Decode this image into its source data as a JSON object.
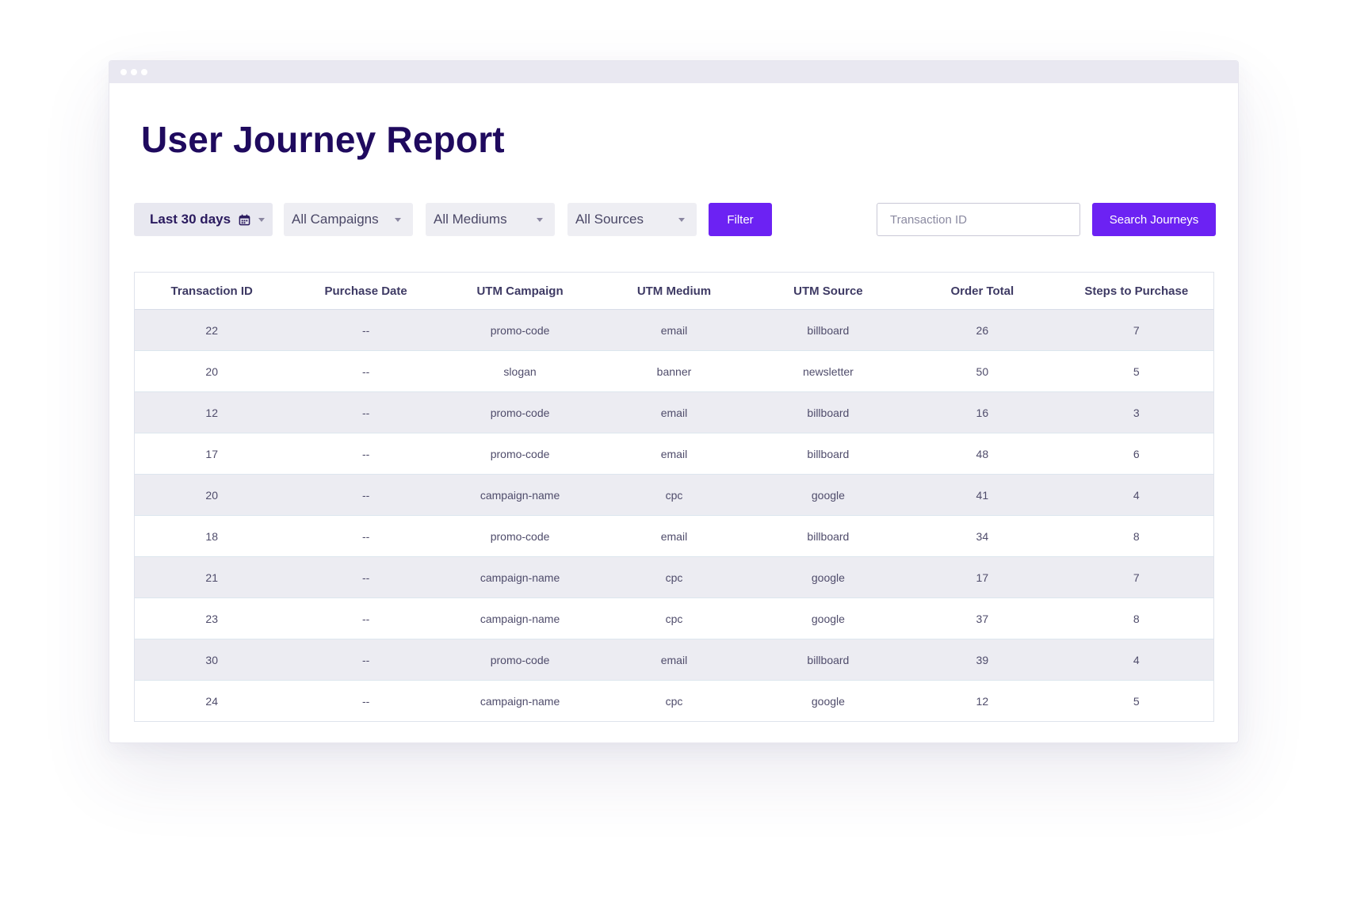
{
  "header": {
    "title": "User Journey Report"
  },
  "filters": {
    "date_range": "Last 30 days",
    "campaigns": "All Campaigns",
    "mediums": "All Mediums",
    "sources": "All Sources",
    "filter_label": "Filter"
  },
  "search": {
    "placeholder": "Transaction ID",
    "button_label": "Search Journeys"
  },
  "table": {
    "columns": [
      "Transaction ID",
      "Purchase Date",
      "UTM Campaign",
      "UTM Medium",
      "UTM Source",
      "Order Total",
      "Steps to Purchase"
    ],
    "rows": [
      [
        "22",
        "--",
        "promo-code",
        "email",
        "billboard",
        "26",
        "7"
      ],
      [
        "20",
        "--",
        "slogan",
        "banner",
        "newsletter",
        "50",
        "5"
      ],
      [
        "12",
        "--",
        "promo-code",
        "email",
        "billboard",
        "16",
        "3"
      ],
      [
        "17",
        "--",
        "promo-code",
        "email",
        "billboard",
        "48",
        "6"
      ],
      [
        "20",
        "--",
        "campaign-name",
        "cpc",
        "google",
        "41",
        "4"
      ],
      [
        "18",
        "--",
        "promo-code",
        "email",
        "billboard",
        "34",
        "8"
      ],
      [
        "21",
        "--",
        "campaign-name",
        "cpc",
        "google",
        "17",
        "7"
      ],
      [
        "23",
        "--",
        "campaign-name",
        "cpc",
        "google",
        "37",
        "8"
      ],
      [
        "30",
        "--",
        "promo-code",
        "email",
        "billboard",
        "39",
        "4"
      ],
      [
        "24",
        "--",
        "campaign-name",
        "cpc",
        "google",
        "12",
        "5"
      ]
    ]
  },
  "icons": {
    "calendar": "calendar-icon",
    "caret": "caret-down-icon"
  },
  "colors": {
    "accent": "#6c22f3",
    "title": "#1f0a5e",
    "row_stripe": "#ececf2"
  }
}
